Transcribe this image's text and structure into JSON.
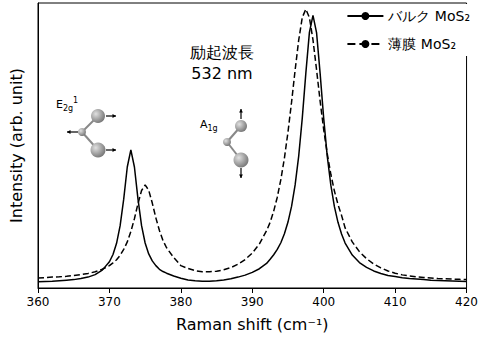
{
  "chart_data": {
    "type": "line",
    "x_label": "Raman shift (cm⁻¹)",
    "y_label": "Intensity (arb. unit)",
    "annotations": [
      "励起波長\n532 nm",
      "E2g1",
      "A1g"
    ],
    "xlim": [
      360,
      420
    ],
    "xticks": [
      360,
      370,
      380,
      390,
      400,
      410,
      420
    ],
    "ylim": [
      0,
      102
    ],
    "tick_labels": "x",
    "grid": false,
    "legend": "upper right",
    "x": [
      360,
      361,
      362,
      363,
      364,
      365,
      366,
      367,
      368,
      369,
      370,
      370.5,
      371,
      371.5,
      372,
      372.5,
      373,
      373.5,
      374,
      374.5,
      375,
      375.5,
      376,
      376.5,
      377,
      377.5,
      378,
      379,
      380,
      381,
      382,
      383,
      384,
      385,
      386,
      387,
      388,
      389,
      390,
      391,
      392,
      392.5,
      393,
      393.5,
      394,
      394.5,
      395,
      395.5,
      396,
      396.5,
      397,
      397.5,
      398,
      398.5,
      399,
      399.5,
      400,
      400.5,
      401,
      401.5,
      402,
      402.5,
      403,
      404,
      405,
      406,
      407,
      408,
      409,
      410,
      411,
      412,
      413,
      414,
      415,
      416,
      417,
      418,
      419,
      420
    ],
    "series": [
      {
        "name": "バルク MoS₂",
        "color": "#000000",
        "line_style": "solid",
        "values": [
          2.2,
          2.3,
          2.4,
          2.6,
          2.8,
          3.0,
          3.4,
          3.9,
          4.8,
          6.4,
          9.4,
          12.0,
          16.0,
          22.3,
          31.8,
          43.3,
          49.4,
          43.3,
          31.8,
          22.3,
          16.1,
          12.2,
          9.7,
          8.0,
          6.7,
          5.9,
          5.3,
          4.3,
          3.5,
          2.9,
          2.6,
          2.4,
          2.4,
          2.6,
          2.9,
          3.3,
          3.9,
          4.6,
          5.6,
          6.9,
          8.8,
          10.3,
          11.9,
          13.8,
          16.2,
          19.4,
          23.6,
          29.2,
          36.9,
          47.2,
          60.8,
          76.9,
          91.5,
          97.6,
          91.4,
          76.8,
          60.7,
          47.1,
          36.8,
          29.1,
          23.5,
          19.3,
          16.1,
          11.8,
          9.1,
          7.4,
          6.1,
          5.2,
          4.5,
          4.1,
          3.7,
          3.4,
          3.2,
          3.0,
          2.8,
          2.7,
          2.6,
          2.5,
          2.4,
          2.3
        ]
      },
      {
        "name": "薄膜 MoS₂",
        "color": "#000000",
        "line_style": "dashed",
        "values": [
          3.6,
          3.7,
          3.9,
          4.0,
          4.2,
          4.5,
          4.8,
          5.2,
          5.8,
          6.7,
          8.0,
          9.0,
          10.1,
          11.7,
          13.8,
          16.5,
          20.2,
          24.8,
          30.2,
          34.9,
          36.9,
          35.0,
          30.4,
          25.1,
          20.6,
          17.0,
          14.4,
          10.9,
          8.0,
          7.0,
          6.2,
          5.8,
          5.8,
          6.0,
          6.5,
          7.3,
          8.5,
          10.2,
          12.5,
          15.8,
          20.5,
          23.5,
          27.5,
          32.5,
          38.8,
          46.5,
          55.8,
          66.5,
          78.0,
          88.7,
          96.8,
          99.8,
          96.8,
          88.8,
          78.1,
          66.9,
          56.7,
          48.0,
          40.7,
          34.7,
          29.9,
          26.0,
          21.5,
          16.5,
          13.0,
          10.5,
          8.6,
          7.2,
          6.1,
          5.3,
          4.7,
          4.3,
          4.0,
          3.8,
          3.6,
          3.4,
          3.3,
          3.2,
          3.1,
          3.0
        ]
      }
    ]
  }
}
